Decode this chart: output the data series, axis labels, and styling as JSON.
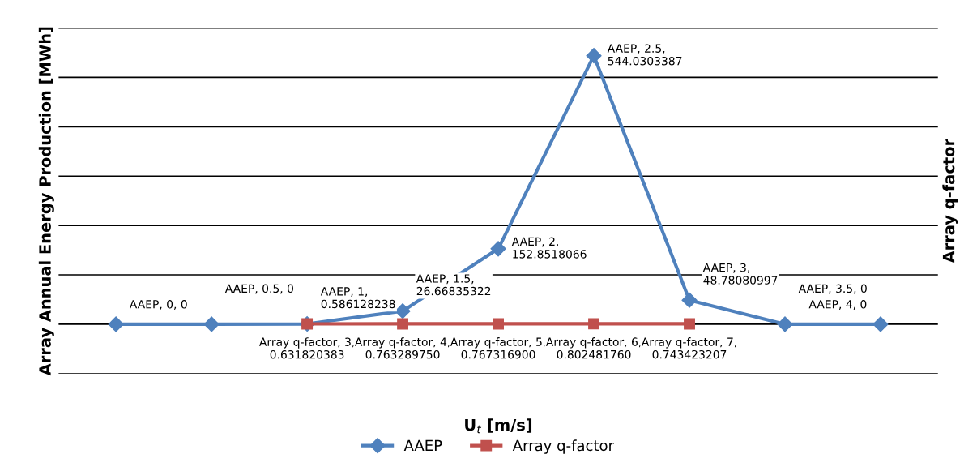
{
  "chart_data": {
    "type": "line",
    "xlabel": "U$_{t}$ [m/s]",
    "ylabel": "Array Annual Energy Production [MWh]",
    "y2label": "Array q-factor",
    "categories": [
      null,
      null,
      null,
      null,
      null,
      null,
      null,
      null,
      null
    ],
    "ylim": [
      -100,
      600
    ],
    "yticks": [
      {
        "value": -100,
        "label": null
      },
      {
        "value": 0,
        "label": null
      },
      {
        "value": 100,
        "label": null
      },
      {
        "value": 200,
        "label": null
      },
      {
        "value": 300,
        "label": null
      },
      {
        "value": 400,
        "label": null
      },
      {
        "value": 500,
        "label": null
      },
      {
        "value": 600,
        "label": null
      }
    ],
    "tick_labels": false,
    "grid": "y",
    "legend": "bottom",
    "line_style": "solid",
    "series": [
      {
        "name": "AAEP",
        "color": "#4f81bd",
        "marker": "diamond",
        "values": [
          0,
          0,
          0.586128238,
          26.66835322,
          152.8518066,
          544.0303387,
          48.78080997,
          0,
          0
        ],
        "value_labels": [
          "AAEP, 0, 0",
          "AAEP, 0.5, 0",
          "AAEP, 1,\n0.586128238",
          "AAEP, 1.5,\n26.66835322",
          "AAEP, 2,\n152.8518066",
          "AAEP, 2.5,\n544.0303387",
          "AAEP, 3,\n48.78080997",
          "AAEP, 3.5, 0",
          "AAEP, 4, 0"
        ]
      },
      {
        "name": "Array q-factor",
        "color": "#c0504d",
        "marker": "square",
        "values": [
          null,
          null,
          0.631820383,
          0.76328975,
          0.7673169,
          0.80248176,
          0.743423207,
          null,
          null
        ],
        "value_labels": [
          null,
          null,
          "Array q-factor, 3,\n0.631820383",
          "Array q-factor, 4,\n0.763289750",
          "Array q-factor, 5,\n0.767316900",
          "Array q-factor, 6,\n0.802481760",
          "Array q-factor, 7,\n0.743423207",
          null,
          null
        ]
      }
    ]
  }
}
